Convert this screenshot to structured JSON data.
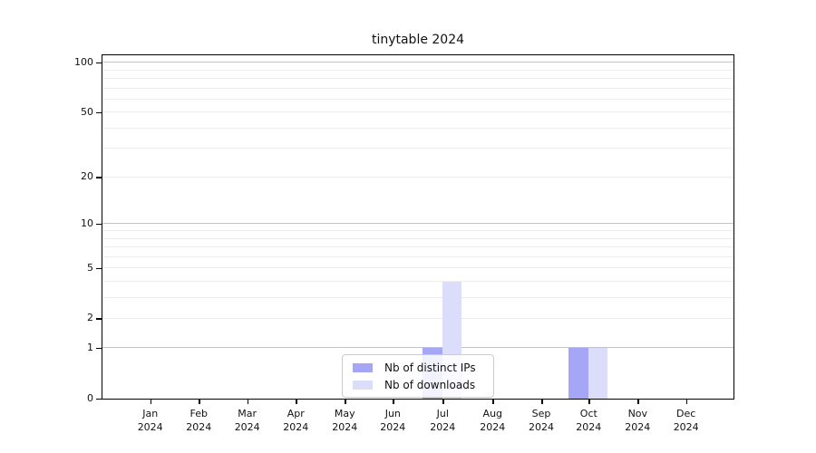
{
  "chart_data": {
    "type": "bar",
    "title": "tinytable 2024",
    "categories": [
      "Jan",
      "Feb",
      "Mar",
      "Apr",
      "May",
      "Jun",
      "Jul",
      "Aug",
      "Sep",
      "Oct",
      "Nov",
      "Dec"
    ],
    "category_year": "2024",
    "series": [
      {
        "name": "Nb of distinct IPs",
        "color": "#a6a6f7",
        "values": [
          0,
          0,
          0,
          0,
          0,
          0,
          1,
          0,
          0,
          1,
          0,
          0
        ]
      },
      {
        "name": "Nb of downloads",
        "color": "#dcdcfb",
        "values": [
          0,
          0,
          0,
          0,
          0,
          0,
          4,
          0,
          0,
          1,
          0,
          0
        ]
      }
    ],
    "y_axis": {
      "scale": "log1p",
      "tick_labels": [
        0,
        1,
        2,
        5,
        10,
        20,
        50,
        100
      ],
      "gridlines_light": [
        2,
        3,
        4,
        5,
        6,
        7,
        8,
        9,
        20,
        30,
        40,
        50,
        60,
        70,
        80,
        90
      ],
      "gridlines_dark": [
        1,
        10,
        100
      ],
      "range": [
        0,
        100
      ]
    },
    "x_axis": {
      "label_year_suffix": "2024"
    },
    "legend_position": "lower center",
    "grid": "horizontal",
    "colors": {
      "spine": "#000000",
      "grid_minor": "#ececec",
      "grid_major": "#c3c3c3"
    }
  }
}
